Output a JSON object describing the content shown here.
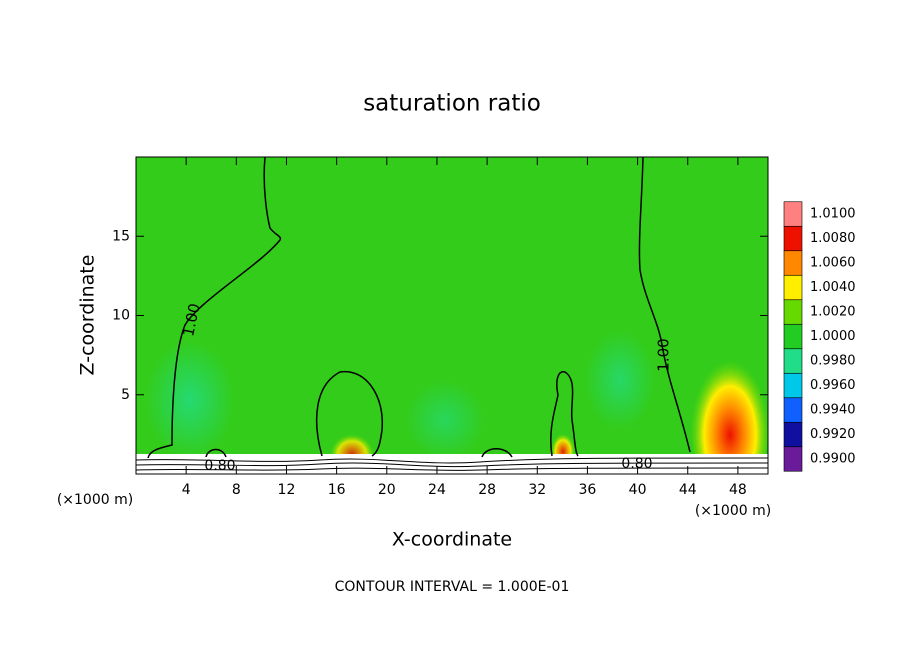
{
  "chart_data": {
    "type": "contour",
    "title": "saturation ratio",
    "x_label": "X-coordinate",
    "y_label": "Z-coordinate",
    "x_unit_label": "(×1000 m)",
    "footer": "CONTOUR INTERVAL = 1.000E-01",
    "xlim": [
      0,
      50.4
    ],
    "ylim": [
      0,
      20
    ],
    "xticks": [
      4,
      8,
      12,
      16,
      20,
      24,
      28,
      32,
      36,
      40,
      44,
      48
    ],
    "yticks": [
      5,
      10,
      15
    ],
    "field_color": "#33cc1a",
    "contour_labels": [
      "1.00",
      "1.00",
      "0.80",
      "0.80"
    ],
    "colorbar": {
      "levels": [
        {
          "value": 0.99,
          "label": "0.9900"
        },
        {
          "value": 0.992,
          "label": "0.9920"
        },
        {
          "value": 0.994,
          "label": "0.9940"
        },
        {
          "value": 0.996,
          "label": "0.9960"
        },
        {
          "value": 0.998,
          "label": "0.9980"
        },
        {
          "value": 1.0,
          "label": "1.0000"
        },
        {
          "value": 1.002,
          "label": "1.0020"
        },
        {
          "value": 1.004,
          "label": "1.0040"
        },
        {
          "value": 1.006,
          "label": "1.0060"
        },
        {
          "value": 1.008,
          "label": "1.0080"
        },
        {
          "value": 1.01,
          "label": "1.0100"
        }
      ],
      "colors": [
        "#6a1b9a",
        "#1010a0",
        "#1060ff",
        "#00c8e8",
        "#22dd88",
        "#22cc22",
        "#66d900",
        "#ffee00",
        "#ff8800",
        "#ee1100",
        "#ff8080"
      ]
    }
  }
}
